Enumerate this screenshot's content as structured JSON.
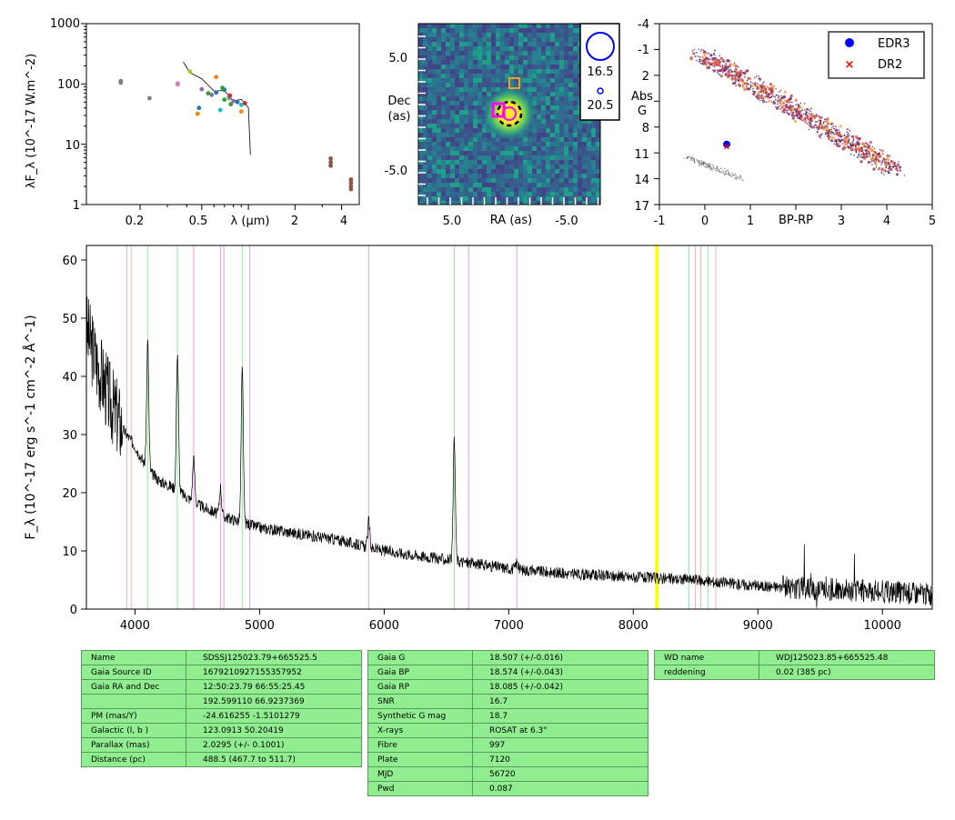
{
  "sed_panel": {
    "ylabel": "λF_λ (10^-17 W.m^-2)",
    "yticks": [
      "1000",
      "100",
      "10",
      "1"
    ],
    "xticks": [
      "0.2",
      "0.5",
      "λ (μm)",
      "2",
      "4"
    ],
    "chart_data": {
      "type": "scatter",
      "x_scale": "log",
      "y_scale": "log",
      "xlim": [
        0.09,
        5.2
      ],
      "ylim": [
        1,
        1000
      ],
      "series": [
        {
          "color": "#7f7f7f",
          "points": [
            [
              0.15,
              112
            ],
            [
              0.15,
              105
            ],
            [
              0.23,
              58
            ]
          ]
        },
        {
          "color": "#e377c2",
          "points": [
            [
              0.35,
              102
            ],
            [
              0.35,
              98
            ]
          ]
        },
        {
          "color": "#ff7f0e",
          "points": [
            [
              0.47,
              32
            ],
            [
              0.62,
              130
            ],
            [
              0.75,
              58
            ],
            [
              0.9,
              35
            ]
          ]
        },
        {
          "color": "#1f77b4",
          "points": [
            [
              0.48,
              40
            ],
            [
              0.62,
              72
            ],
            [
              0.7,
              80
            ],
            [
              0.85,
              50
            ]
          ]
        },
        {
          "color": "#2ca02c",
          "points": [
            [
              0.55,
              70
            ],
            [
              0.68,
              86
            ],
            [
              0.7,
              55
            ],
            [
              0.77,
              46
            ]
          ]
        },
        {
          "color": "#17becf",
          "points": [
            [
              0.66,
              37
            ],
            [
              0.75,
              60
            ],
            [
              0.9,
              45
            ]
          ]
        },
        {
          "color": "#9467bd",
          "points": [
            [
              0.5,
              82
            ],
            [
              0.58,
              66
            ],
            [
              0.8,
              52
            ]
          ]
        },
        {
          "color": "#d62728",
          "points": [
            [
              0.76,
              64
            ],
            [
              0.95,
              48
            ]
          ]
        },
        {
          "color": "#bcbd22",
          "points": [
            [
              0.42,
              160
            ]
          ]
        },
        {
          "color": "#8c564b",
          "points": [
            [
              3.4,
              5.8
            ],
            [
              3.4,
              5.0
            ],
            [
              3.4,
              4.4
            ],
            [
              4.6,
              2.6
            ],
            [
              4.6,
              2.3
            ],
            [
              4.6,
              2.0
            ],
            [
              4.6,
              1.8
            ]
          ]
        }
      ],
      "spectrum_line": [
        [
          0.38,
          210
        ],
        [
          0.42,
          170
        ],
        [
          0.5,
          110
        ],
        [
          0.6,
          85
        ],
        [
          0.7,
          70
        ],
        [
          0.8,
          58
        ],
        [
          0.9,
          50
        ],
        [
          1.0,
          45
        ],
        [
          1.03,
          6
        ]
      ]
    }
  },
  "image_panel": {
    "ylabel": "Dec\n(as)",
    "yticks": [
      "5.0",
      "-5.0"
    ],
    "xlabel": "RA (as)",
    "xticks": [
      "5.0",
      "-5.0"
    ],
    "legend": [
      "16.5",
      "20.5"
    ]
  },
  "hr_panel": {
    "ylabel": "Abs\nG",
    "yticks": [
      "-4",
      "-1",
      "2",
      "5",
      "8",
      "11",
      "14",
      "17"
    ],
    "xlabel": "BP-RP",
    "xticks": [
      "-1",
      "0",
      "1",
      "3",
      "4",
      "5"
    ],
    "legend": [
      {
        "label": "EDR3",
        "color": "#0000ff",
        "marker": "circle"
      },
      {
        "label": "DR2",
        "color": "#ff0000",
        "marker": "x"
      }
    ],
    "chart_data": {
      "type": "scatter",
      "xlim": [
        -1,
        5
      ],
      "ylim": [
        17,
        -4
      ],
      "points": [
        {
          "series": "EDR3",
          "x": 0.48,
          "y": 10.0
        },
        {
          "series": "DR2",
          "x": 0.48,
          "y": 10.2
        }
      ]
    }
  },
  "spectrum_panel": {
    "ylabel": "F_λ (10^-17 erg s^-1 cm^-2 Å^-1)",
    "yticks": [
      "0",
      "10",
      "20",
      "30",
      "40",
      "50",
      "60"
    ],
    "xticks": [
      "4000",
      "5000",
      "6000",
      "7000",
      "8000",
      "9000",
      "10000"
    ],
    "chart_data": {
      "type": "line",
      "xlim": [
        3610,
        10400
      ],
      "ylim": [
        0,
        62.5
      ],
      "continuum": [
        [
          3610,
          48
        ],
        [
          3700,
          42
        ],
        [
          3800,
          36
        ],
        [
          3900,
          31
        ],
        [
          4000,
          28
        ],
        [
          4100,
          24
        ],
        [
          4200,
          22
        ],
        [
          4300,
          21
        ],
        [
          4500,
          18
        ],
        [
          4700,
          16
        ],
        [
          5000,
          14
        ],
        [
          5300,
          13
        ],
        [
          5600,
          12
        ],
        [
          6000,
          10
        ],
        [
          6500,
          8.5
        ],
        [
          7000,
          7
        ],
        [
          7500,
          6
        ],
        [
          8000,
          5.5
        ],
        [
          8500,
          5
        ],
        [
          9000,
          4
        ],
        [
          9500,
          3.5
        ],
        [
          10000,
          3
        ],
        [
          10400,
          2.5
        ]
      ],
      "emission_lines": [
        [
          4102,
          46
        ],
        [
          4341,
          44
        ],
        [
          4471,
          26
        ],
        [
          4686,
          21
        ],
        [
          4861,
          41
        ],
        [
          5876,
          15
        ],
        [
          6563,
          29
        ],
        [
          7065,
          8
        ]
      ],
      "vlines": [
        {
          "x": 3934,
          "color": "#ffb0b0"
        },
        {
          "x": 3969,
          "color": "#ffb0b0"
        },
        {
          "x": 4102,
          "color": "#90ee90"
        },
        {
          "x": 4340,
          "color": "#90ee90"
        },
        {
          "x": 4471,
          "color": "#e89be8"
        },
        {
          "x": 4686,
          "color": "#e89be8"
        },
        {
          "x": 4713,
          "color": "#e89be8"
        },
        {
          "x": 4861,
          "color": "#90ee90"
        },
        {
          "x": 4922,
          "color": "#e89be8"
        },
        {
          "x": 5876,
          "color": "#e89be8"
        },
        {
          "x": 6563,
          "color": "#90ee90"
        },
        {
          "x": 6678,
          "color": "#e89be8"
        },
        {
          "x": 7065,
          "color": "#e89be8"
        },
        {
          "x": 8183,
          "color": "#ffff00"
        },
        {
          "x": 8195,
          "color": "#ffff00"
        },
        {
          "x": 8446,
          "color": "#90ee90"
        },
        {
          "x": 8498,
          "color": "#ffb0b0"
        },
        {
          "x": 8542,
          "color": "#ffb0b0"
        },
        {
          "x": 8598,
          "color": "#90ee90"
        },
        {
          "x": 8662,
          "color": "#ffb0b0"
        }
      ]
    }
  },
  "table1": [
    [
      "Name",
      "SDSSJ125023.79+665525.5"
    ],
    [
      "Gaia Source ID",
      "1679210927155357952"
    ],
    [
      "Gaia RA and Dec",
      "12:50:23.79    66:55:25.45"
    ],
    [
      "",
      "192.599110    66.9237369"
    ],
    [
      "PM (mas/Y)",
      "-24.616255    -1.5101279"
    ],
    [
      "Galactic (l, b )",
      "123.0913    50.20419"
    ],
    [
      "Parallax (mas)",
      "2.0295 (+/- 0.1001)"
    ],
    [
      "Distance (pc)",
      "488.5 (467.7 to 511.7)"
    ]
  ],
  "table2": [
    [
      "Gaia G",
      "18.507 (+/-0.016)"
    ],
    [
      "Gaia BP",
      "18.574 (+/-0.043)"
    ],
    [
      "Gaia RP",
      "18.085 (+/-0.042)"
    ],
    [
      "SNR",
      "16.7"
    ],
    [
      "Synthetic G mag",
      "18.7"
    ],
    [
      "X-rays",
      "ROSAT at 6.3\""
    ],
    [
      "Fibre",
      "997"
    ],
    [
      "Plate",
      "7120"
    ],
    [
      "MJD",
      "56720"
    ],
    [
      "Pwd",
      "0.087"
    ]
  ],
  "table3": [
    [
      "WD name",
      "WDJ125023.85+665525.48"
    ],
    [
      "reddening",
      "0.02 (385 pc)"
    ]
  ]
}
